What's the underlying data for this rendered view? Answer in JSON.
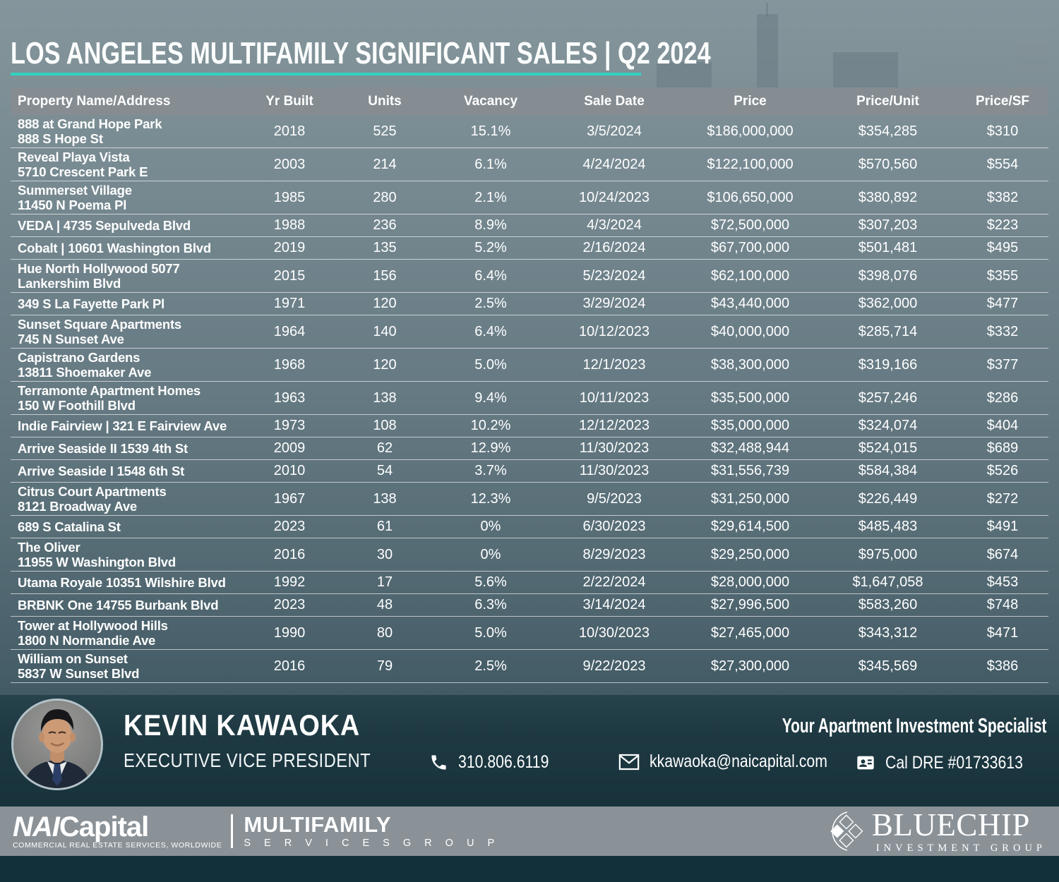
{
  "header": {
    "title": "LOS ANGELES MULTIFAMILY SIGNIFICANT SALES | Q2 2024"
  },
  "colors": {
    "accent_teal": "#2FD4C1",
    "header_bar_gray": "#858D92",
    "footer_dark_teal": "#1D3841",
    "logo_bar_gray": "#8A9298"
  },
  "table": {
    "columns": [
      "Property Name/Address",
      "Yr Built",
      "Units",
      "Vacancy",
      "Sale Date",
      "Price",
      "Price/Unit",
      "Price/SF"
    ],
    "rows": [
      {
        "name": "888 at Grand Hope Park",
        "address": "888 S Hope St",
        "yr_built": "2018",
        "units": "525",
        "vacancy": "15.1%",
        "sale_date": "3/5/2024",
        "price": "$186,000,000",
        "price_unit": "$354,285",
        "price_sf": "$310"
      },
      {
        "name": "Reveal Playa Vista",
        "address": "5710 Crescent Park E",
        "yr_built": "2003",
        "units": "214",
        "vacancy": "6.1%",
        "sale_date": "4/24/2024",
        "price": "$122,100,000",
        "price_unit": "$570,560",
        "price_sf": "$554"
      },
      {
        "name": "Summerset Village",
        "address": "11450 N Poema Pl",
        "yr_built": "1985",
        "units": "280",
        "vacancy": "2.1%",
        "sale_date": "10/24/2023",
        "price": "$106,650,000",
        "price_unit": "$380,892",
        "price_sf": "$382"
      },
      {
        "name": "VEDA | 4735 Sepulveda Blvd",
        "address": "",
        "yr_built": "1988",
        "units": "236",
        "vacancy": "8.9%",
        "sale_date": "4/3/2024",
        "price": "$72,500,000",
        "price_unit": "$307,203",
        "price_sf": "$223"
      },
      {
        "name": "Cobalt | 10601 Washington Blvd",
        "address": "",
        "yr_built": "2019",
        "units": "135",
        "vacancy": "5.2%",
        "sale_date": "2/16/2024",
        "price": "$67,700,000",
        "price_unit": "$501,481",
        "price_sf": "$495"
      },
      {
        "name": "Hue North Hollywood 5077",
        "address": "Lankershim Blvd",
        "yr_built": "2015",
        "units": "156",
        "vacancy": "6.4%",
        "sale_date": "5/23/2024",
        "price": "$62,100,000",
        "price_unit": "$398,076",
        "price_sf": "$355"
      },
      {
        "name": "349 S La Fayette Park Pl",
        "address": "",
        "yr_built": "1971",
        "units": "120",
        "vacancy": "2.5%",
        "sale_date": "3/29/2024",
        "price": "$43,440,000",
        "price_unit": "$362,000",
        "price_sf": "$477"
      },
      {
        "name": "Sunset Square Apartments",
        "address": "745 N Sunset Ave",
        "yr_built": "1964",
        "units": "140",
        "vacancy": "6.4%",
        "sale_date": "10/12/2023",
        "price": "$40,000,000",
        "price_unit": "$285,714",
        "price_sf": "$332"
      },
      {
        "name": "Capistrano Gardens",
        "address": "13811 Shoemaker Ave",
        "yr_built": "1968",
        "units": "120",
        "vacancy": "5.0%",
        "sale_date": "12/1/2023",
        "price": "$38,300,000",
        "price_unit": "$319,166",
        "price_sf": "$377"
      },
      {
        "name": "Terramonte Apartment Homes",
        "address": "150 W Foothill Blvd",
        "yr_built": "1963",
        "units": "138",
        "vacancy": "9.4%",
        "sale_date": "10/11/2023",
        "price": "$35,500,000",
        "price_unit": "$257,246",
        "price_sf": "$286"
      },
      {
        "name": "Indie Fairview | 321 E Fairview Ave",
        "address": "",
        "yr_built": "1973",
        "units": "108",
        "vacancy": "10.2%",
        "sale_date": "12/12/2023",
        "price": "$35,000,000",
        "price_unit": "$324,074",
        "price_sf": "$404"
      },
      {
        "name": "Arrive Seaside II 1539 4th St",
        "address": "",
        "yr_built": "2009",
        "units": "62",
        "vacancy": "12.9%",
        "sale_date": "11/30/2023",
        "price": "$32,488,944",
        "price_unit": "$524,015",
        "price_sf": "$689"
      },
      {
        "name": "Arrive Seaside I 1548 6th St",
        "address": "",
        "yr_built": "2010",
        "units": "54",
        "vacancy": "3.7%",
        "sale_date": "11/30/2023",
        "price": "$31,556,739",
        "price_unit": "$584,384",
        "price_sf": "$526"
      },
      {
        "name": "Citrus Court Apartments",
        "address": "8121 Broadway Ave",
        "yr_built": "1967",
        "units": "138",
        "vacancy": "12.3%",
        "sale_date": "9/5/2023",
        "price": "$31,250,000",
        "price_unit": "$226,449",
        "price_sf": "$272"
      },
      {
        "name": "689 S Catalina St",
        "address": "",
        "yr_built": "2023",
        "units": "61",
        "vacancy": "0%",
        "sale_date": "6/30/2023",
        "price": "$29,614,500",
        "price_unit": "$485,483",
        "price_sf": "$491"
      },
      {
        "name": "The Oliver",
        "address": "11955 W Washington Blvd",
        "yr_built": "2016",
        "units": "30",
        "vacancy": "0%",
        "sale_date": "8/29/2023",
        "price": "$29,250,000",
        "price_unit": "$975,000",
        "price_sf": "$674"
      },
      {
        "name": "Utama Royale 10351 Wilshire Blvd",
        "address": "",
        "yr_built": "1992",
        "units": "17",
        "vacancy": "5.6%",
        "sale_date": "2/22/2024",
        "price": "$28,000,000",
        "price_unit": "$1,647,058",
        "price_sf": "$453"
      },
      {
        "name": "BRBNK One 14755 Burbank Blvd",
        "address": "",
        "yr_built": "2023",
        "units": "48",
        "vacancy": "6.3%",
        "sale_date": "3/14/2024",
        "price": "$27,996,500",
        "price_unit": "$583,260",
        "price_sf": "$748"
      },
      {
        "name": "Tower at Hollywood Hills",
        "address": "1800 N Normandie Ave",
        "yr_built": "1990",
        "units": "80",
        "vacancy": "5.0%",
        "sale_date": "10/30/2023",
        "price": "$27,465,000",
        "price_unit": "$343,312",
        "price_sf": "$471"
      },
      {
        "name": "William on Sunset",
        "address": "5837 W Sunset Blvd",
        "yr_built": "2016",
        "units": "79",
        "vacancy": "2.5%",
        "sale_date": "9/22/2023",
        "price": "$27,300,000",
        "price_unit": "$345,569",
        "price_sf": "$386"
      }
    ]
  },
  "agent": {
    "name": "KEVIN KAWAOKA",
    "title": "EXECUTIVE VICE PRESIDENT",
    "tagline": "Your Apartment Investment Specialist",
    "phone": "310.806.6119",
    "email": "kkawaoka@naicapital.com",
    "license": "Cal DRE #01733613"
  },
  "brands": {
    "nai": {
      "wordmark_bold": "NAI",
      "wordmark_rest": "Capital",
      "tagline": "COMMERCIAL REAL ESTATE SERVICES, WORLDWIDE",
      "division": "MULTIFAMILY",
      "division_sub": "S E R V I C E S   G R O U P"
    },
    "bluechip": {
      "name": "BLUECHIP",
      "sub": "INVESTMENT GROUP"
    }
  }
}
